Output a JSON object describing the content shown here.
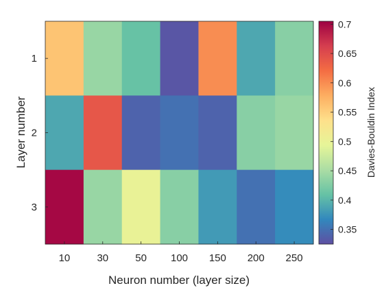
{
  "chart_data": {
    "type": "heatmap",
    "xlabel": "Neuron number (layer size)",
    "ylabel": "Layer number",
    "x_categories": [
      "10",
      "30",
      "50",
      "100",
      "150",
      "200",
      "250"
    ],
    "y_categories": [
      "1",
      "2",
      "3"
    ],
    "values": [
      [
        0.56,
        0.44,
        0.41,
        0.33,
        0.6,
        0.39,
        0.43
      ],
      [
        0.39,
        0.64,
        0.34,
        0.35,
        0.34,
        0.43,
        0.44
      ],
      [
        0.7,
        0.44,
        0.5,
        0.43,
        0.38,
        0.35,
        0.37
      ]
    ],
    "colorbar": {
      "label": "Davies-Bouldin Index",
      "range": [
        0.325,
        0.705
      ],
      "ticks": [
        "0.35",
        "0.4",
        "0.45",
        "0.5",
        "0.55",
        "0.6",
        "0.65",
        "0.7"
      ],
      "colormap": [
        "#5e4fa2",
        "#3288bd",
        "#66c2a5",
        "#abdda4",
        "#e6f598",
        "#fee08b",
        "#fdae61",
        "#f46d43",
        "#d53e4f",
        "#9e0142"
      ]
    }
  }
}
